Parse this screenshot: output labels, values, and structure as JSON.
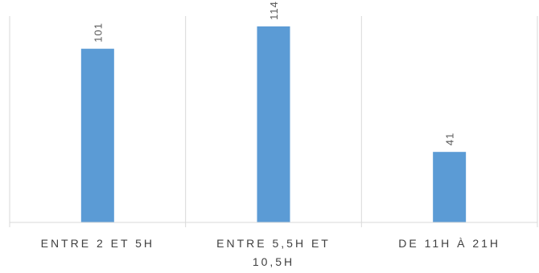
{
  "chart_data": {
    "type": "bar",
    "categories": [
      "ENTRE 2 ET 5H",
      "ENTRE 5,5H ET 10,5H",
      "DE 11H À 21H"
    ],
    "category_lines": [
      [
        "ENTRE 2 ET 5H"
      ],
      [
        "ENTRE 5,5H ET",
        "10,5H"
      ],
      [
        "DE 11H À 21H"
      ]
    ],
    "values": [
      101,
      114,
      41
    ],
    "ylim": [
      0,
      120
    ],
    "grid": "vertical separators between categories",
    "legend": "none",
    "bar_color": "#5B9BD5",
    "axis_color": "#D9D9D9",
    "text_color": "#404040"
  }
}
